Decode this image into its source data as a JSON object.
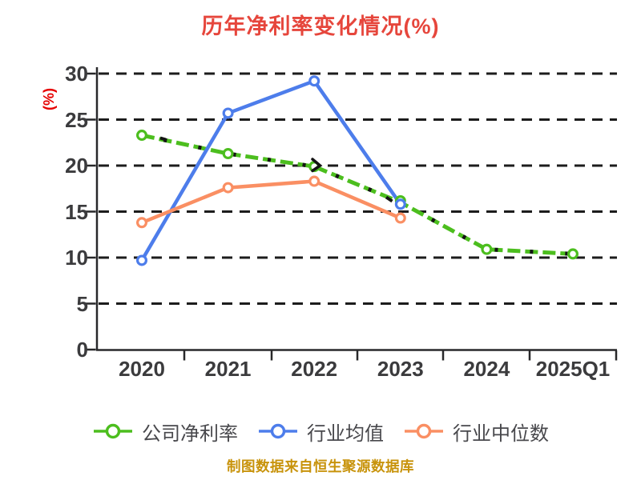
{
  "title": {
    "text": "历年净利率变化情况(%)"
  },
  "footer": {
    "text": "制图数据来自恒生聚源数据库"
  },
  "colors": {
    "background": "#ffffff",
    "title_red": "#e6463c",
    "ylabel_red": "#e60000",
    "tick_label": "#3b3b3d",
    "axis_line": "#28282a",
    "gridline": "#1c1c1c",
    "legend_text": "#48484c",
    "footer_gold": "#c8930b",
    "marker_fill": "#ffffff",
    "dash_artifact": "#141414"
  },
  "chart_data": {
    "type": "line",
    "title": "历年净利率变化情况(%)",
    "xlabel": "",
    "ylabel": "(%)",
    "categories": [
      "2020",
      "2021",
      "2022",
      "2023",
      "2024",
      "2025Q1"
    ],
    "yticks": [
      0,
      5,
      10,
      15,
      20,
      25,
      30
    ],
    "ylim": [
      0,
      30
    ],
    "grid": "horizontal-dashed",
    "legend_position": "bottom-center",
    "series": [
      {
        "name": "公司净利率",
        "color": "#4cbe1e",
        "line_style": "dashed",
        "marker": "circle-white-fill",
        "values": [
          23.3,
          21.3,
          19.9,
          16.0,
          10.9,
          10.4
        ]
      },
      {
        "name": "行业均值",
        "color": "#4d7deb",
        "line_style": "solid",
        "marker": "circle-white-fill",
        "values": [
          9.7,
          25.7,
          29.2,
          15.8,
          null,
          null
        ]
      },
      {
        "name": "行业中位数",
        "color": "#fa8f63",
        "line_style": "solid",
        "marker": "circle-white-fill",
        "values": [
          13.8,
          17.6,
          18.3,
          14.3,
          null,
          null
        ]
      }
    ]
  }
}
